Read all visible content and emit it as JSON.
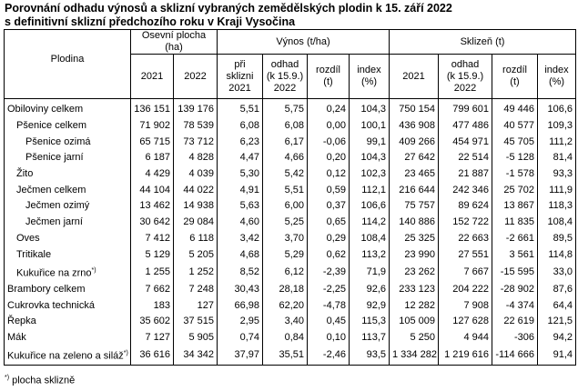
{
  "title": [
    "Porovnání odhadu výnosů a sklizní vybraných zemědělských plodin k 15. září 2022",
    "s definitivní sklizní předchozího roku v Kraji Vysočina"
  ],
  "table": {
    "header": {
      "crop": "Plodina",
      "groups": [
        "Osevní plocha (ha)",
        "Výnos (t/ha)",
        "Sklizeň (t)"
      ],
      "columns": [
        "2021",
        "2022",
        "při sklizni\n2021",
        "odhad\n(k 15.9.)\n2022",
        "rozdíl\n(t)",
        "index\n(%)",
        "2021",
        "odhad\n(k 15.9.)\n2022",
        "rozdíl\n(t)",
        "index\n(%)"
      ]
    },
    "rows": [
      {
        "name": "Obiloviny celkem",
        "values": [
          "136 151",
          "139 176",
          "5,51",
          "5,75",
          "0,24",
          "104,3",
          "750 154",
          "799 601",
          "49 446",
          "106,6"
        ]
      },
      {
        "name": "Pšenice celkem",
        "values": [
          "71 902",
          "78 539",
          "6,08",
          "6,08",
          "0,00",
          "100,1",
          "436 908",
          "477 486",
          "40 577",
          "109,3"
        ]
      },
      {
        "name": "Pšenice ozimá",
        "values": [
          "65 715",
          "73 712",
          "6,23",
          "6,17",
          "-0,06",
          "99,1",
          "409 266",
          "454 971",
          "45 705",
          "111,2"
        ]
      },
      {
        "name": "Pšenice jarní",
        "values": [
          "6 187",
          "4 828",
          "4,47",
          "4,66",
          "0,20",
          "104,3",
          "27 642",
          "22 514",
          "-5 128",
          "81,4"
        ]
      },
      {
        "name": "Žito",
        "values": [
          "4 429",
          "4 039",
          "5,30",
          "5,42",
          "0,12",
          "102,3",
          "23 465",
          "21 887",
          "-1 578",
          "93,3"
        ]
      },
      {
        "name": "Ječmen celkem",
        "values": [
          "44 104",
          "44 022",
          "4,91",
          "5,51",
          "0,59",
          "112,1",
          "216 644",
          "242 346",
          "25 702",
          "111,9"
        ]
      },
      {
        "name": "Ječmen ozimý",
        "values": [
          "13 462",
          "14 938",
          "5,63",
          "6,00",
          "0,37",
          "106,6",
          "75 757",
          "89 624",
          "13 867",
          "118,3"
        ]
      },
      {
        "name": "Ječmen jarní",
        "values": [
          "30 642",
          "29 084",
          "4,60",
          "5,25",
          "0,65",
          "114,2",
          "140 886",
          "152 722",
          "11 835",
          "108,4"
        ]
      },
      {
        "name": "Oves",
        "values": [
          "7 412",
          "6 118",
          "3,42",
          "3,70",
          "0,29",
          "108,4",
          "25 325",
          "22 663",
          "-2 661",
          "89,5"
        ]
      },
      {
        "name": "Tritikale",
        "values": [
          "5 129",
          "5 205",
          "4,68",
          "5,29",
          "0,62",
          "113,2",
          "23 990",
          "27 551",
          "3 561",
          "114,8"
        ]
      },
      {
        "name": "Kukuřice na zrno",
        "note": "*)",
        "values": [
          "1 255",
          "1 252",
          "8,52",
          "6,12",
          "-2,39",
          "71,9",
          "23 262",
          "7 667",
          "-15 595",
          "33,0"
        ]
      },
      {
        "name": "Brambory celkem",
        "values": [
          "7 662",
          "7 248",
          "30,43",
          "28,18",
          "-2,25",
          "92,6",
          "233 123",
          "204 222",
          "-28 902",
          "87,6"
        ]
      },
      {
        "name": "Cukrovka technická",
        "values": [
          "183",
          "127",
          "66,98",
          "62,20",
          "-4,78",
          "92,9",
          "12 282",
          "7 908",
          "-4 374",
          "64,4"
        ]
      },
      {
        "name": "Řepka",
        "values": [
          "35 602",
          "37 515",
          "2,95",
          "3,40",
          "0,45",
          "115,3",
          "105 009",
          "127 628",
          "22 619",
          "121,5"
        ]
      },
      {
        "name": "Mák",
        "values": [
          "7 127",
          "5 905",
          "0,74",
          "0,84",
          "0,10",
          "113,7",
          "5 250",
          "4 944",
          "-306",
          "94,2"
        ]
      },
      {
        "name": "Kukuřice na zeleno a siláž",
        "note": "*)",
        "values": [
          "36 616",
          "34 342",
          "37,97",
          "35,51",
          "-2,46",
          "93,5",
          "1 334 282",
          "1 219 616",
          "-114 666",
          "91,4"
        ]
      }
    ]
  },
  "footnote": {
    "mark": "*)",
    "text": "plocha sklizně"
  }
}
